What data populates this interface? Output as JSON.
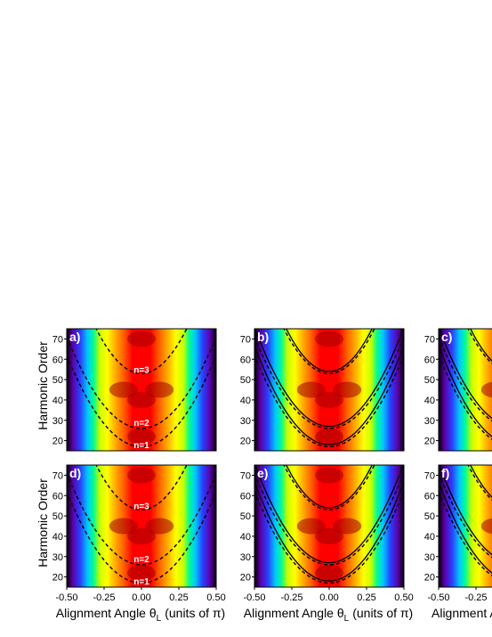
{
  "chart_data": {
    "type": "heatmap",
    "ylabel": "Harmonic Order",
    "xlabel_text": "Alignment Angle θ",
    "xlabel_sub": "L",
    "xlabel_units": "(units of π)",
    "xlim": [
      -0.5,
      0.5
    ],
    "ylim": [
      15,
      75
    ],
    "x_ticks": [
      "-0.50",
      "-0.25",
      "0.00",
      "0.25",
      "0.50"
    ],
    "y_ticks": [
      "20",
      "30",
      "40",
      "50",
      "60",
      "70"
    ],
    "color_scale": [
      "#000000",
      "#5b00a8",
      "#2840ff",
      "#00c8ff",
      "#00ff90",
      "#c8ff00",
      "#ffff00",
      "#ffb400",
      "#ff6000",
      "#ff0000",
      "#b00000"
    ],
    "panels": [
      {
        "letter": "a)",
        "row": 0,
        "col": 0,
        "solid_curves": false,
        "labels": [
          "n=3",
          "n=2",
          "n=1"
        ]
      },
      {
        "letter": "b)",
        "row": 0,
        "col": 1,
        "solid_curves": true,
        "labels": []
      },
      {
        "letter": "c)",
        "row": 0,
        "col": 2,
        "solid_curves": true,
        "labels": []
      },
      {
        "letter": "d)",
        "row": 1,
        "col": 0,
        "solid_curves": false,
        "labels": [
          "n=3",
          "n=2",
          "n=1"
        ]
      },
      {
        "letter": "e)",
        "row": 1,
        "col": 1,
        "solid_curves": true,
        "labels": []
      },
      {
        "letter": "f)",
        "row": 1,
        "col": 2,
        "solid_curves": true,
        "labels": []
      }
    ],
    "interference_minima": [
      {
        "n": 1,
        "min_order": 17
      },
      {
        "n": 2,
        "min_order": 26
      },
      {
        "n": 3,
        "min_order": 53
      }
    ]
  }
}
